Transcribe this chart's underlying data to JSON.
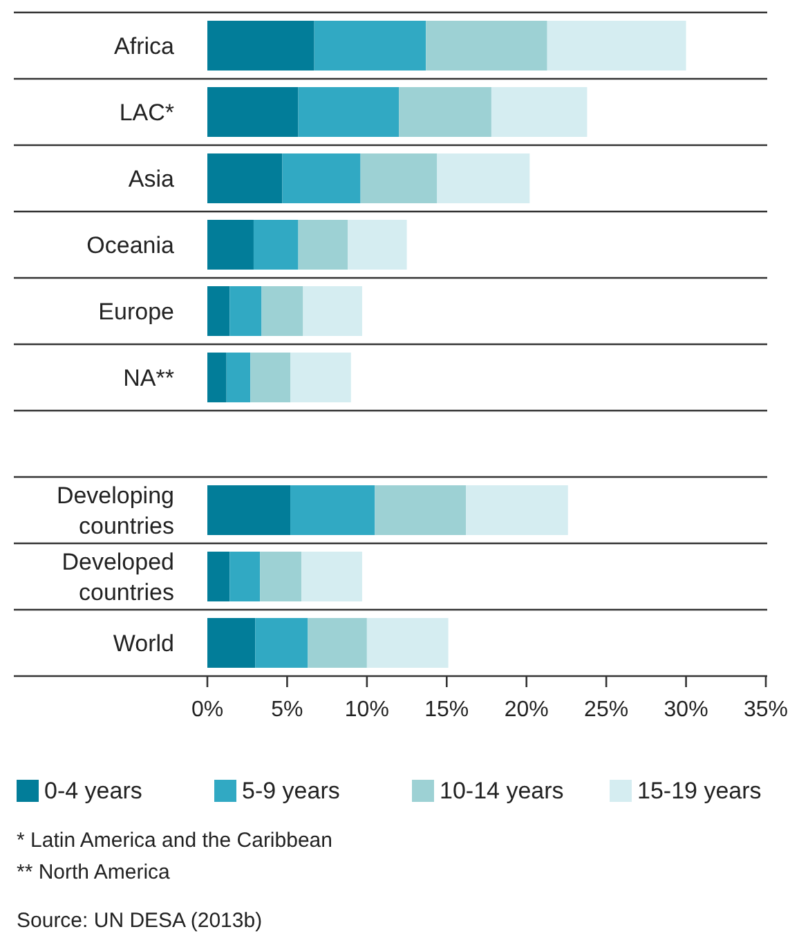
{
  "chart_data": {
    "type": "bar",
    "orientation": "horizontal",
    "stacked": true,
    "categories": [
      "Africa",
      "LAC*",
      "Asia",
      "Oceania",
      "Europe",
      "NA**",
      null,
      "Developing countries",
      "Developed countries",
      "World"
    ],
    "series": [
      {
        "name": "0-4 years",
        "color": "#027d99",
        "values": [
          6.7,
          5.7,
          4.7,
          2.9,
          1.4,
          1.2,
          null,
          5.2,
          1.4,
          3.0
        ]
      },
      {
        "name": "5-9 years",
        "color": "#31a9c3",
        "values": [
          7.0,
          6.3,
          4.9,
          2.8,
          2.0,
          1.5,
          null,
          5.3,
          1.9,
          3.3
        ]
      },
      {
        "name": "10-14 years",
        "color": "#9dd1d4",
        "values": [
          7.6,
          5.8,
          4.8,
          3.1,
          2.6,
          2.5,
          null,
          5.7,
          2.6,
          3.7
        ]
      },
      {
        "name": "15-19 years",
        "color": "#d5edf1",
        "values": [
          8.7,
          6.0,
          5.8,
          3.7,
          3.7,
          3.8,
          null,
          6.4,
          3.8,
          5.1
        ]
      }
    ],
    "xlim": [
      0,
      35
    ],
    "xticks": [
      {
        "value": 0,
        "label": "0%"
      },
      {
        "value": 5,
        "label": "5%"
      },
      {
        "value": 10,
        "label": "10%"
      },
      {
        "value": 15,
        "label": "15%"
      },
      {
        "value": 20,
        "label": "20%"
      },
      {
        "value": 25,
        "label": "25%"
      },
      {
        "value": 30,
        "label": "30%"
      },
      {
        "value": 35,
        "label": "35%"
      }
    ],
    "grid": false,
    "legend": "bottom",
    "annotations": [
      "* Latin America and the Caribbean",
      "** North America",
      "Source: UN DESA (2013b)"
    ]
  }
}
